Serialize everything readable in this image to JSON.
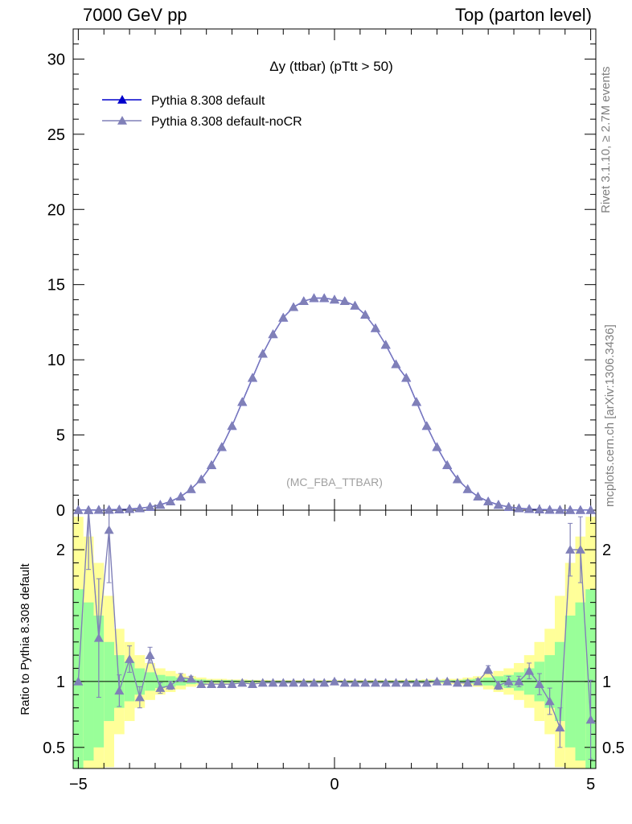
{
  "header": {
    "left": "7000 GeV pp",
    "right": "Top (parton level)"
  },
  "side_labels": {
    "rivet": "Rivet 3.1.10, ≥ 2.7M events",
    "mcplots": "mcplots.cern.ch [arXiv:1306.3436]"
  },
  "colors": {
    "default": "#0000cc",
    "nocr": "#8080b8",
    "band_inner": "#99ff99",
    "band_outer": "#ffff99",
    "watermark": "#a0a0a0"
  },
  "chart_data": [
    {
      "type": "line",
      "title": "Δy (ttbar) (pTtt > 50)",
      "xlim": [
        -5.1,
        5.1
      ],
      "ylim": [
        0,
        32
      ],
      "yticks": [
        0,
        5,
        10,
        15,
        20,
        25,
        30
      ],
      "watermark": "(MC_FBA_TTBAR)",
      "legend": {
        "placement": "top-left"
      },
      "x": [
        -5.0,
        -4.8,
        -4.6,
        -4.4,
        -4.2,
        -4.0,
        -3.8,
        -3.6,
        -3.4,
        -3.2,
        -3.0,
        -2.8,
        -2.6,
        -2.4,
        -2.2,
        -2.0,
        -1.8,
        -1.6,
        -1.4,
        -1.2,
        -1.0,
        -0.8,
        -0.6,
        -0.4,
        -0.2,
        0.0,
        0.2,
        0.4,
        0.6,
        0.8,
        1.0,
        1.2,
        1.4,
        1.6,
        1.8,
        2.0,
        2.2,
        2.4,
        2.6,
        2.8,
        3.0,
        3.2,
        3.4,
        3.6,
        3.8,
        4.0,
        4.2,
        4.4,
        4.6,
        4.8,
        5.0
      ],
      "series": [
        {
          "name": "Pythia 8.308 default",
          "values": [
            0.01,
            0.01,
            0.02,
            0.03,
            0.05,
            0.08,
            0.13,
            0.22,
            0.36,
            0.58,
            0.9,
            1.4,
            2.05,
            3.0,
            4.2,
            5.6,
            7.2,
            8.8,
            10.4,
            11.7,
            12.8,
            13.5,
            13.9,
            14.1,
            14.1,
            14.0,
            13.9,
            13.6,
            13.0,
            12.1,
            11.0,
            9.7,
            8.8,
            7.2,
            5.6,
            4.2,
            3.0,
            2.05,
            1.4,
            0.9,
            0.58,
            0.36,
            0.22,
            0.13,
            0.08,
            0.05,
            0.03,
            0.02,
            0.01,
            0.01,
            0.01
          ]
        },
        {
          "name": "Pythia 8.308 default-noCR",
          "values": [
            0.01,
            0.01,
            0.02,
            0.03,
            0.05,
            0.08,
            0.13,
            0.22,
            0.36,
            0.58,
            0.9,
            1.4,
            2.05,
            3.0,
            4.2,
            5.6,
            7.2,
            8.8,
            10.4,
            11.7,
            12.8,
            13.5,
            13.9,
            14.1,
            14.1,
            14.0,
            13.9,
            13.6,
            13.0,
            12.1,
            11.0,
            9.7,
            8.8,
            7.2,
            5.6,
            4.2,
            3.0,
            2.05,
            1.4,
            0.9,
            0.58,
            0.36,
            0.22,
            0.13,
            0.08,
            0.05,
            0.03,
            0.02,
            0.01,
            0.01,
            0.01
          ]
        }
      ]
    },
    {
      "type": "line",
      "ylabel": "Ratio to Pythia 8.308 default",
      "xlim": [
        -5.1,
        5.1
      ],
      "ylim": [
        0.34,
        2.3
      ],
      "xticks": [
        -5,
        0,
        5
      ],
      "yticks": [
        0.5,
        1,
        2
      ],
      "x": [
        -5.0,
        -4.8,
        -4.6,
        -4.4,
        -4.2,
        -4.0,
        -3.8,
        -3.6,
        -3.4,
        -3.2,
        -3.0,
        -2.8,
        -2.6,
        -2.4,
        -2.2,
        -2.0,
        -1.8,
        -1.6,
        -1.4,
        -1.2,
        -1.0,
        -0.8,
        -0.6,
        -0.4,
        -0.2,
        0.0,
        0.2,
        0.4,
        0.6,
        0.8,
        1.0,
        1.2,
        1.4,
        1.6,
        1.8,
        2.0,
        2.2,
        2.4,
        2.6,
        2.8,
        3.0,
        3.2,
        3.4,
        3.6,
        3.8,
        4.0,
        4.2,
        4.4,
        4.6,
        4.8,
        5.0
      ],
      "ratio": {
        "values": [
          1.0,
          2.35,
          1.33,
          2.15,
          0.93,
          1.17,
          0.88,
          1.2,
          0.95,
          0.97,
          1.03,
          1.02,
          0.98,
          0.98,
          0.98,
          0.98,
          0.99,
          0.98,
          0.99,
          0.99,
          0.99,
          0.99,
          0.99,
          0.99,
          0.99,
          1.0,
          0.99,
          0.99,
          0.99,
          0.99,
          0.99,
          0.99,
          0.99,
          0.99,
          0.99,
          1.0,
          1.0,
          0.99,
          0.99,
          1.0,
          1.09,
          0.97,
          1.0,
          1.0,
          1.08,
          0.98,
          0.85,
          0.65,
          2.0,
          2.0,
          0.71
        ],
        "errors": [
          0.0,
          0.5,
          0.45,
          0.4,
          0.12,
          0.1,
          0.08,
          0.06,
          0.04,
          0.03,
          0.03,
          0.02,
          0.02,
          0.01,
          0.01,
          0.01,
          0.01,
          0.01,
          0.01,
          0.01,
          0.01,
          0.01,
          0.01,
          0.01,
          0.01,
          0.01,
          0.01,
          0.01,
          0.01,
          0.01,
          0.01,
          0.01,
          0.01,
          0.01,
          0.01,
          0.01,
          0.01,
          0.01,
          0.02,
          0.02,
          0.03,
          0.03,
          0.04,
          0.04,
          0.06,
          0.08,
          0.1,
          0.15,
          0.2,
          0.25,
          0.3
        ]
      },
      "band": {
        "inner_half_width": [
          0.7,
          0.6,
          0.5,
          0.3,
          0.2,
          0.15,
          0.1,
          0.07,
          0.05,
          0.04,
          0.03,
          0.02,
          0.015,
          0.01,
          0.01,
          0.01,
          0.008,
          0.008,
          0.006,
          0.006,
          0.006,
          0.005,
          0.005,
          0.005,
          0.005,
          0.005,
          0.005,
          0.005,
          0.005,
          0.005,
          0.006,
          0.006,
          0.006,
          0.008,
          0.008,
          0.01,
          0.01,
          0.01,
          0.015,
          0.02,
          0.03,
          0.04,
          0.05,
          0.07,
          0.1,
          0.15,
          0.2,
          0.3,
          0.5,
          0.6,
          0.7
        ],
        "outer_half_width": [
          1.25,
          1.1,
          0.9,
          0.65,
          0.4,
          0.3,
          0.2,
          0.14,
          0.1,
          0.08,
          0.06,
          0.04,
          0.03,
          0.02,
          0.02,
          0.015,
          0.015,
          0.012,
          0.012,
          0.01,
          0.01,
          0.01,
          0.01,
          0.01,
          0.01,
          0.01,
          0.01,
          0.01,
          0.01,
          0.01,
          0.01,
          0.01,
          0.012,
          0.012,
          0.015,
          0.015,
          0.02,
          0.02,
          0.03,
          0.04,
          0.06,
          0.08,
          0.1,
          0.14,
          0.2,
          0.3,
          0.4,
          0.65,
          0.9,
          1.1,
          1.25
        ]
      }
    }
  ]
}
